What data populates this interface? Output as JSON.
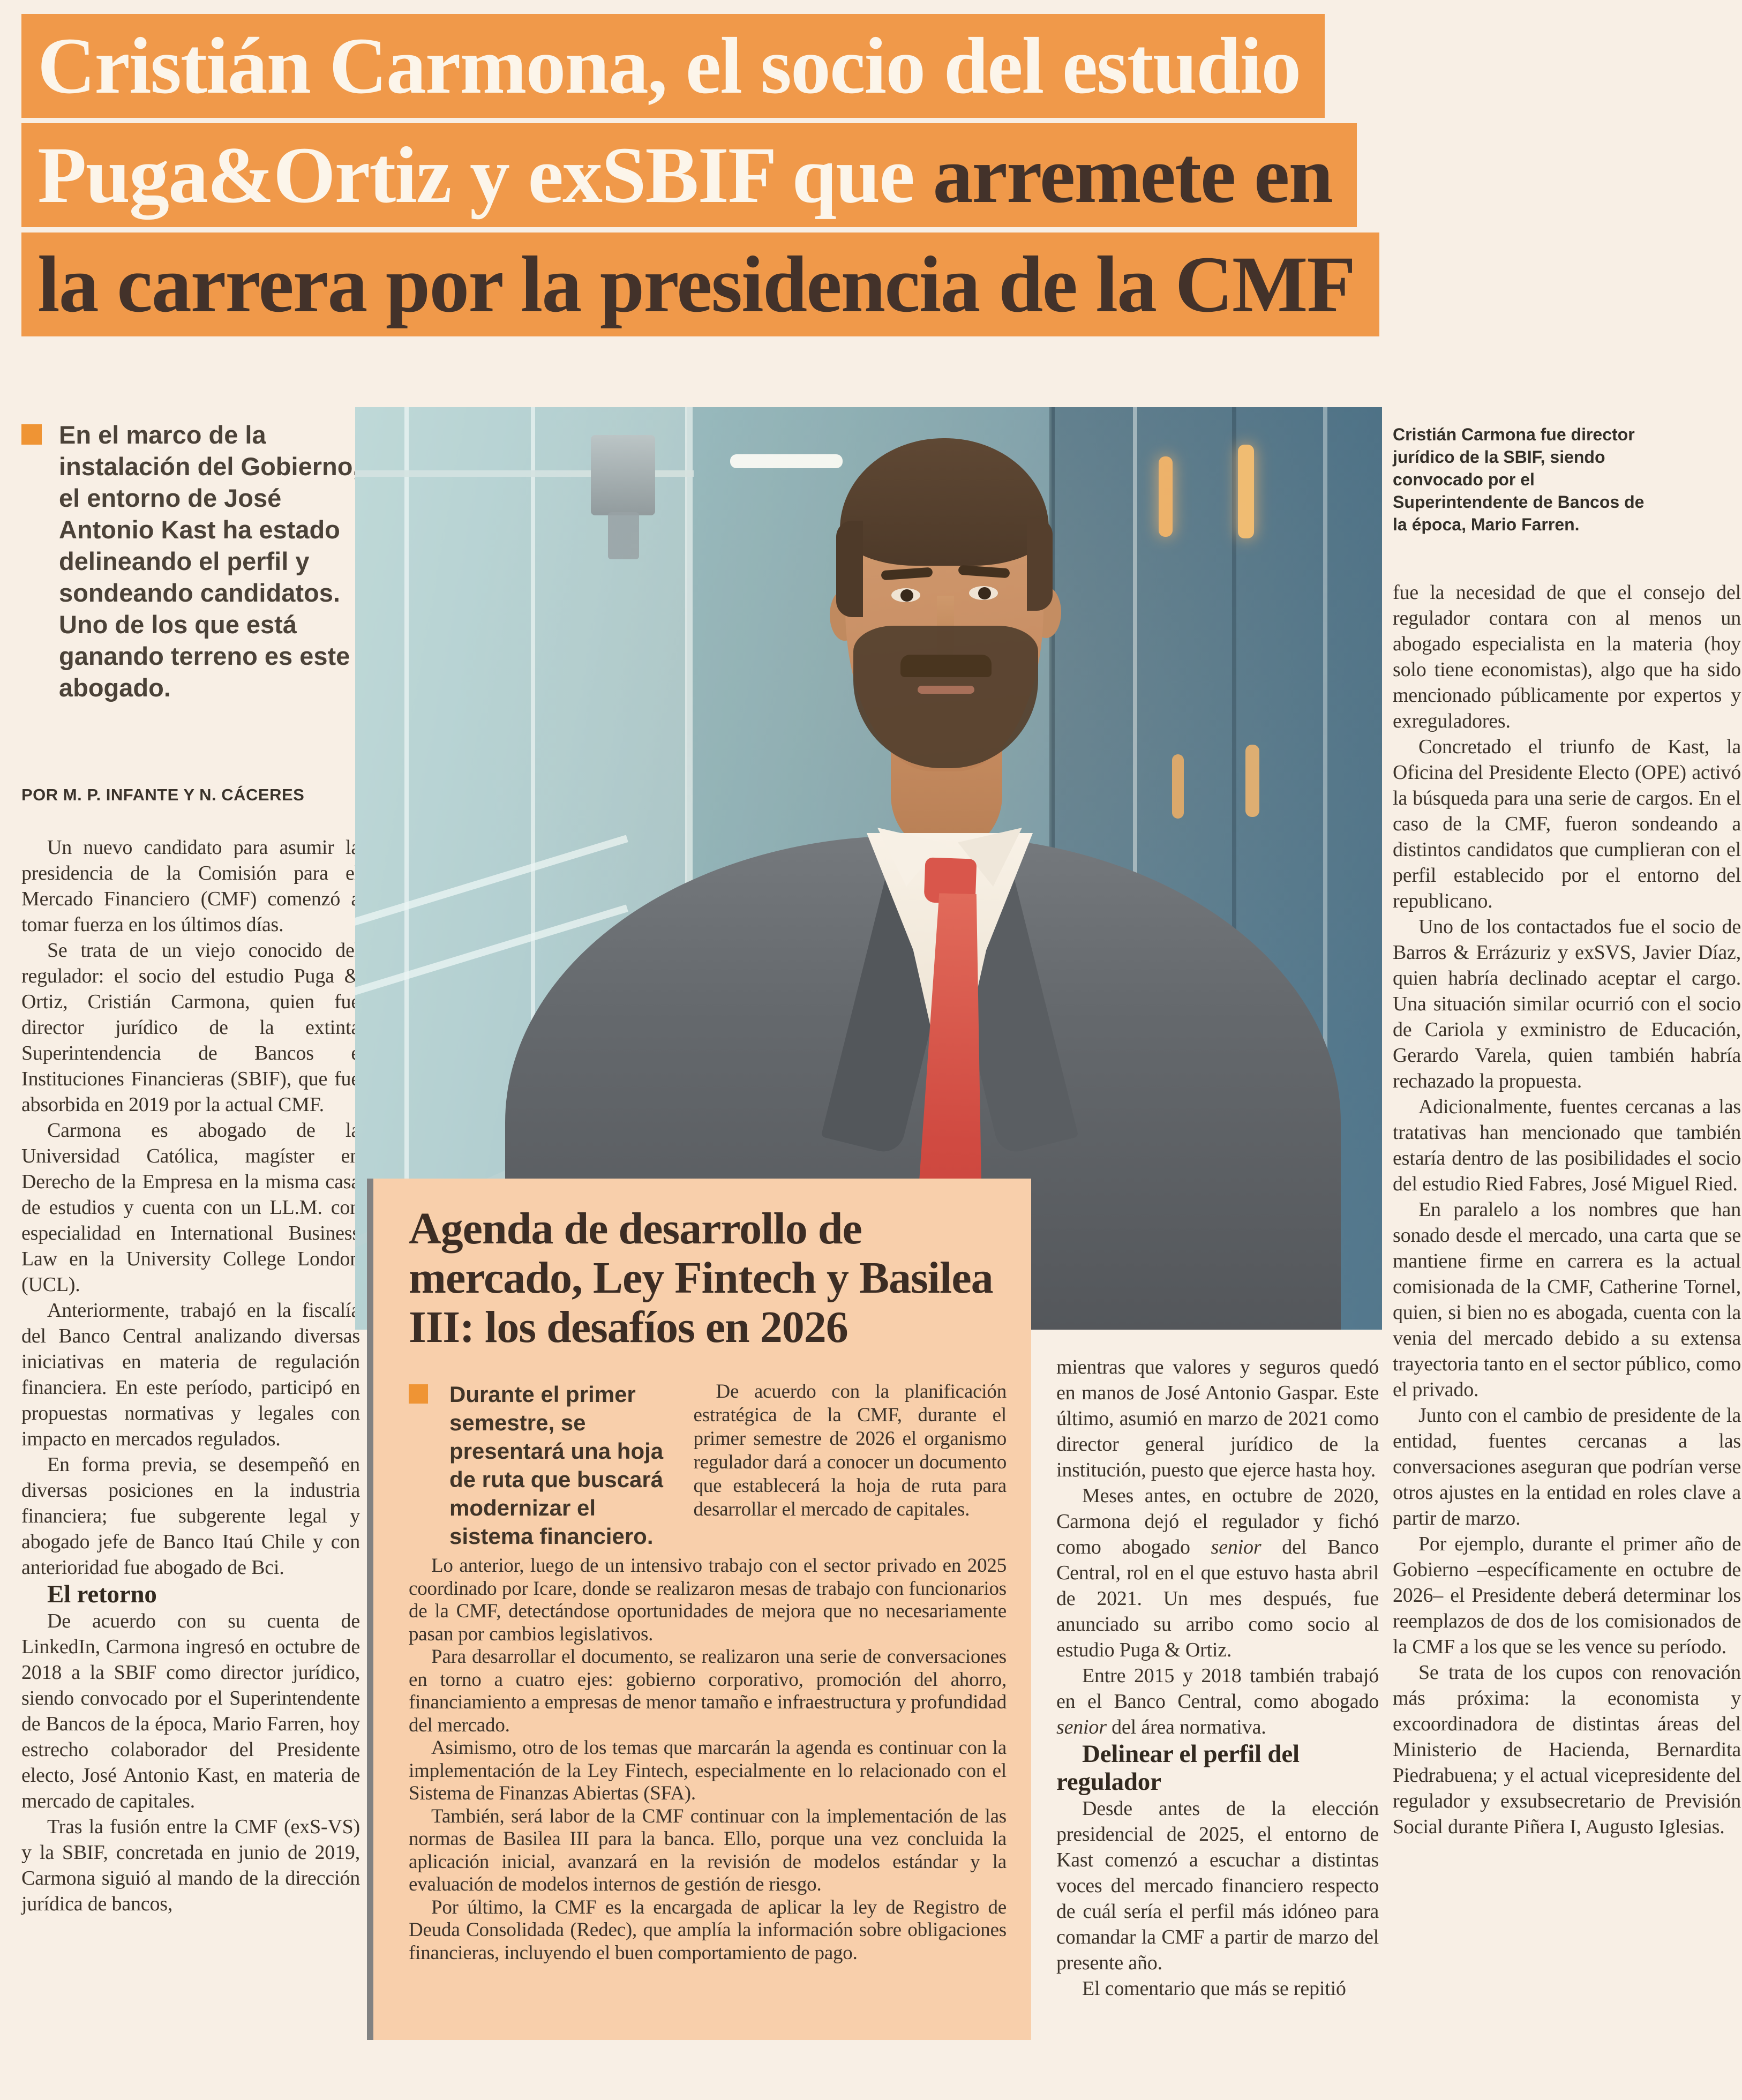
{
  "headline": {
    "line1": "Cristián Carmona, el socio del estudio",
    "line2_white": "Puga&Ortiz y exSBIF que ",
    "line2_dark": "arremete en",
    "line3": "la carrera por la presidencia de la CMF",
    "highlight_color": "#f0994a"
  },
  "lede": {
    "text": "En el marco de la instalación del Gobierno, el entorno de José Antonio Kast ha estado delineando el perfil y sondeando candidatos. Uno de los que está ganando terreno es este abogado."
  },
  "byline": "POR M. P. INFANTE Y N. CÁCERES",
  "col1": {
    "paragraphs": [
      "Un nuevo candidato para asumir la presidencia de la Comisión para el Mercado Financiero (CMF) comenzó a tomar fuerza en los últimos días.",
      "Se trata de un viejo conocido del regulador: el socio del estudio Puga & Ortiz, Cristián Carmona, quien fue director jurídico de la extinta Superintendencia de Bancos e Instituciones Financieras (SBIF), que fue absorbida en 2019 por la actual CMF.",
      "Carmona es abogado de la Universidad Católica, magíster en Derecho de la Empresa en la misma casa de estudios y cuenta con un LL.M. con especialidad en International Business Law en la University College London (UCL).",
      "Anteriormente, trabajó en la fiscalía del Banco Central analizando diversas iniciativas en materia de regulación financiera. En este período, participó en propuestas normativas y legales con impacto en mercados regulados.",
      "En forma previa, se desempeñó en diversas posiciones en la industria financiera; fue subgerente legal y abogado jefe de Banco Itaú Chile y con anterioridad fue abogado de Bci."
    ],
    "heading": "El retorno",
    "paragraphs2": [
      "De acuerdo con su cuenta de LinkedIn, Carmona ingresó en octubre de 2018 a la SBIF como director jurídico, siendo convocado por el Superintendente de Bancos de la época, Mario Farren, hoy estrecho colaborador del Presidente electo, José Antonio Kast, en materia de mercado de capitales.",
      "Tras la fusión entre la CMF (exS-VS) y la SBIF, concretada en junio de 2019, Carmona siguió al mando de la dirección jurídica de bancos,"
    ]
  },
  "photo": {
    "caption": "Cristián Carmona fue director jurídico de la SBIF, siendo convocado por el Superintendente de Bancos de la época, Mario Farren.",
    "description": "man-in-gray-suit-red-tie-in-glass-building"
  },
  "agenda": {
    "title": "Agenda de desarrollo de mercado, Ley Fintech y Basilea III: los desafíos en 2026",
    "bullet_text": "Durante el primer semestre, se presentará una hoja de ruta que buscará modernizar el sistema financiero.",
    "intro": "De acuerdo con la planificación estratégica de la CMF, durante el primer semestre de 2026 el organismo regulador dará a conocer un documento que establecerá la hoja de ruta para desarrollar el mercado de capitales.",
    "paragraphs": [
      "Lo anterior, luego de un intensivo trabajo con el sector privado en 2025 coordinado por Icare, donde se realizaron mesas de trabajo con funcionarios de la CMF, detectándose oportunidades de mejora que no necesariamente pasan por cambios legislativos.",
      "Para desarrollar el documento, se realizaron una serie de conversaciones en torno a cuatro ejes: gobierno corporativo, promoción del ahorro, financiamiento a empresas de menor tamaño e infraestructura y profundidad del mercado.",
      "Asimismo, otro de los temas que marcarán la agenda es continuar con la implementación de la Ley Fintech, especialmente en lo relacionado con el Sistema de Finanzas Abiertas (SFA).",
      "También, será labor de la CMF continuar con la implementación de las normas de Basilea III para la banca. Ello, porque una vez concluida la aplicación inicial, avanzará en la revisión de modelos estándar y la evaluación de modelos internos de gestión de riesgo.",
      "Por último, la CMF es la encargada de aplicar la ley de Registro de Deuda Consolidada (Redec), que amplía la información sobre obligaciones financieras, incluyendo el buen comportamiento de pago."
    ]
  },
  "col3": {
    "p1": "mientras que valores y seguros quedó en manos de José Antonio Gaspar. Este último, asumió en marzo de 2021 como director general jurídico de la institución, puesto que ejerce hasta hoy.",
    "p2_a": "Meses antes, en octubre de 2020, Carmona dejó el regulador y fichó como abogado ",
    "p2_em": "senior",
    "p2_b": " del Banco Central, rol en el que estuvo hasta abril de 2021. Un mes después, fue anunciado su arribo como socio al estudio Puga & Ortiz.",
    "p3_a": "Entre 2015 y 2018 también trabajó en el Banco Central, como abogado ",
    "p3_em": "senior",
    "p3_b": " del área normativa.",
    "heading": "Delinear el perfil del regulador",
    "p4": "Desde antes de la elección presidencial de 2025, el entorno de Kast comenzó a escuchar a distintas voces del mercado financiero respecto de cuál sería el perfil más idóneo para comandar la CMF a partir de marzo del presente año.",
    "p5": "El comentario que más se repitió"
  },
  "col4": {
    "paragraphs": [
      "fue la necesidad de que el consejo del regulador contara con al menos un abogado especialista en la materia (hoy solo tiene economistas), algo que ha sido mencionado públicamente por expertos y exreguladores.",
      "Concretado el triunfo de Kast, la Oficina del Presidente Electo (OPE) activó la búsqueda para una serie de cargos. En el caso de la CMF, fueron sondeando a distintos candidatos que cumplieran con el perfil establecido por el entorno del republicano.",
      "Uno de los contactados fue el socio de Barros & Errázuriz y exSVS, Javier Díaz, quien habría declinado aceptar el cargo. Una situación similar ocurrió con el socio de Cariola y exministro de Educación, Gerardo Varela, quien también habría rechazado la propuesta.",
      "Adicionalmente, fuentes cercanas a las tratativas han mencionado que también estaría dentro de las posibilidades el socio del estudio Ried Fabres, José Miguel Ried.",
      "En paralelo a los nombres que han sonado desde el mercado, una carta que se mantiene firme en carrera es la actual comisionada de la CMF, Catherine Tornel, quien, si bien no es abogada, cuenta con la venia del mercado debido a su extensa trayectoria tanto en el sector público, como el privado.",
      "Junto con el cambio de presidente de la entidad, fuentes cercanas a las conversaciones aseguran que podrían verse otros ajustes en la entidad en roles clave a partir de marzo.",
      "Por ejemplo, durante el primer año de Gobierno –específicamente en octubre de 2026– el Presidente deberá determinar los reemplazos de dos de los comisionados de la CMF a los que se les vence su período.",
      "Se trata de los cupos con renovación más próxima: la economista y excoordinadora de distintas áreas del Ministerio de Hacienda, Bernardita Piedrabuena; y el actual vicepresidente del regulador y exsubsecretario de Previsión Social durante Piñera I, Augusto Iglesias."
    ]
  },
  "colors": {
    "page_bg": "#f8efe5",
    "highlight_orange": "#f0994a",
    "agenda_box_bg": "#f8cfab",
    "bullet_orange": "#ef9434",
    "headline_dark": "#43322a",
    "headline_white": "#fcf5ea",
    "body_text": "#3c332a",
    "rule_gray": "#828282",
    "tie_red": "#d9564b"
  }
}
